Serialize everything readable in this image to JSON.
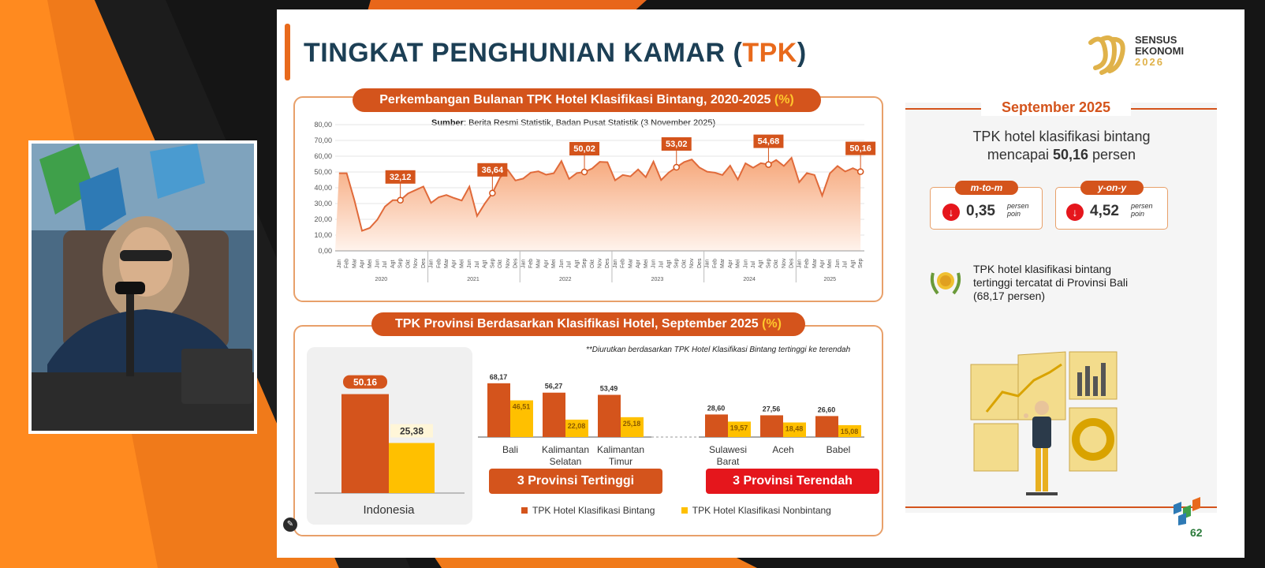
{
  "slide": {
    "title_main": "TINGKAT PENGHUNIAN KAMAR (",
    "title_accent": "TPK",
    "title_close": ")",
    "logo_lines": [
      "SENSUS",
      "EKONOMI",
      "2026"
    ],
    "page_number": "62"
  },
  "line_section": {
    "heading": "Perkembangan Bulanan TPK Hotel Klasifikasi Bintang, 2020-2025 ",
    "heading_unit": "(%)",
    "source_bold": "Sumber",
    "source_text": ": Berita Resmi Statistik, Badan Pusat Statistik (3 November 2025)"
  },
  "bar_section": {
    "heading": "TPK Provinsi Berdasarkan Klasifikasi Hotel, September 2025 ",
    "heading_unit": "(%)",
    "note": "**Diurutkan berdasarkan TPK Hotel Klasifikasi Bintang tertinggi ke terendah",
    "top_label": "3 Provinsi Tertinggi",
    "bottom_label": "3 Provinsi Terendah",
    "legend": [
      "TPK Hotel Klasifikasi Bintang",
      "TPK Hotel Klasifikasi Nonbintang"
    ]
  },
  "side": {
    "heading": "September 2025",
    "summary_line1": "TPK hotel klasifikasi bintang",
    "summary_line2_prefix": "mencapai ",
    "summary_value": "50,16",
    "summary_line2_suffix": " persen",
    "mtm_label": "m-to-m",
    "mtm_value": "0,35",
    "yoy_label": "y-on-y",
    "yoy_value": "4,52",
    "unit_line1": "persen",
    "unit_line2": "poin",
    "bali_line1": "TPK hotel klasifikasi bintang",
    "bali_line2": "tertinggi tercatat di Provinsi Bali",
    "bali_line3": "(68,17 persen)"
  },
  "colors": {
    "orange": "#d4541c",
    "yellow": "#ffc000",
    "red": "#e5161c"
  },
  "chart_data": [
    {
      "type": "area",
      "title": "Perkembangan Bulanan TPK Hotel Klasifikasi Bintang, 2020-2025 (%)",
      "ylim": [
        0,
        80
      ],
      "yticks": [
        "0,00",
        "10,00",
        "20,00",
        "30,00",
        "40,00",
        "50,00",
        "60,00",
        "70,00",
        "80,00"
      ],
      "months": [
        "Jan",
        "Feb",
        "Mar",
        "Apr",
        "Mei",
        "Jun",
        "Jul",
        "Agt",
        "Sep",
        "Okt",
        "Nov",
        "Des"
      ],
      "years": [
        "2020",
        "2021",
        "2022",
        "2023",
        "2024",
        "2025"
      ],
      "values": [
        49.2,
        49.2,
        32.2,
        12.7,
        14.5,
        19.8,
        28.1,
        32.1,
        32.1,
        36.4,
        38.6,
        40.8,
        30.4,
        34.0,
        35.4,
        33.5,
        31.9,
        40.7,
        22.1,
        29.9,
        36.6,
        46.5,
        51.3,
        44.6,
        45.8,
        49.6,
        50.4,
        48.3,
        49.2,
        56.9,
        45.6,
        49.3,
        50.0,
        52.2,
        56.4,
        56.2,
        44.7,
        48.1,
        47.2,
        51.6,
        46.7,
        56.6,
        44.9,
        49.7,
        53.0,
        56.3,
        57.9,
        52.8,
        50.2,
        49.6,
        48.1,
        54.0,
        45.2,
        55.5,
        52.7,
        55.6,
        54.7,
        57.6,
        53.8,
        59.0,
        43.5,
        49.3,
        48.1,
        35.0,
        49.1,
        53.8,
        50.3,
        52.4,
        50.2
      ],
      "annotations": [
        {
          "index": 8,
          "label": "32,12"
        },
        {
          "index": 20,
          "label": "36,64"
        },
        {
          "index": 32,
          "label": "50,02"
        },
        {
          "index": 44,
          "label": "53,02"
        },
        {
          "index": 56,
          "label": "54,68"
        },
        {
          "index": 68,
          "label": "50,16"
        }
      ]
    },
    {
      "type": "bar",
      "categories": [
        "Indonesia"
      ],
      "series": [
        {
          "name": "TPK Hotel Klasifikasi Bintang",
          "values": [
            50.16
          ],
          "labels": [
            "50.16"
          ]
        },
        {
          "name": "TPK Hotel Klasifikasi Nonbintang",
          "values": [
            25.38
          ],
          "labels": [
            "25,38"
          ]
        }
      ]
    },
    {
      "type": "bar",
      "categories": [
        [
          "Bali"
        ],
        [
          "Kalimantan",
          "Selatan"
        ],
        [
          "Kalimantan",
          "Timur"
        ],
        [
          "Sulawesi",
          "Barat"
        ],
        [
          "Aceh"
        ],
        [
          "Babel"
        ]
      ],
      "series": [
        {
          "name": "TPK Hotel Klasifikasi Bintang",
          "values": [
            68.17,
            56.27,
            53.49,
            28.6,
            27.56,
            26.6
          ],
          "labels": [
            "68,17",
            "56,27",
            "53,49",
            "28,60",
            "27,56",
            "26,60"
          ]
        },
        {
          "name": "TPK Hotel Klasifikasi Nonbintang",
          "values": [
            46.51,
            22.08,
            25.18,
            19.57,
            18.48,
            15.08
          ],
          "labels": [
            "46,51",
            "22,08",
            "25,18",
            "19,57",
            "18,48",
            "15,08"
          ]
        }
      ]
    }
  ]
}
